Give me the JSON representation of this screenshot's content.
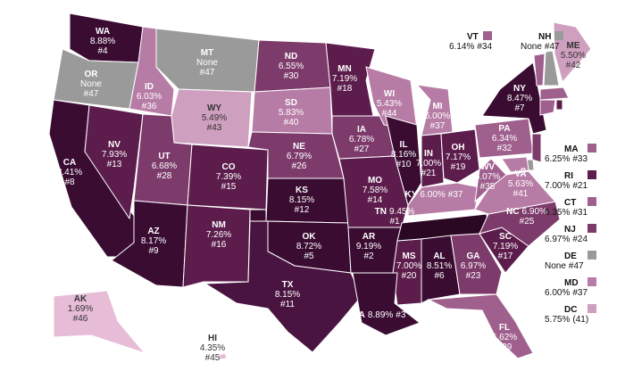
{
  "states": [
    {
      "abbr": "WA",
      "rate": "8.88%",
      "rank": "#4",
      "color": "#3a0c32"
    },
    {
      "abbr": "OR",
      "rate": "None",
      "rank": "#47",
      "color": "#9a9a9a"
    },
    {
      "abbr": "CA",
      "rate": "8.41%",
      "rank": "#8",
      "color": "#3a0c32"
    },
    {
      "abbr": "NV",
      "rate": "7.93%",
      "rank": "#13",
      "color": "#5c1d4c"
    },
    {
      "abbr": "ID",
      "rate": "6.03%",
      "rank": "#36",
      "color": "#b77ca5"
    },
    {
      "abbr": "MT",
      "rate": "None",
      "rank": "#47",
      "color": "#9a9a9a"
    },
    {
      "abbr": "WY",
      "rate": "5.49%",
      "rank": "#43",
      "color": "#cf9fbf"
    },
    {
      "abbr": "UT",
      "rate": "6.68%",
      "rank": "#28",
      "color": "#7d3b6b"
    },
    {
      "abbr": "AZ",
      "rate": "8.17%",
      "rank": "#9",
      "color": "#3a0c32"
    },
    {
      "abbr": "CO",
      "rate": "7.39%",
      "rank": "#15",
      "color": "#5c1d4c"
    },
    {
      "abbr": "NM",
      "rate": "7.26%",
      "rank": "#16",
      "color": "#5c1d4c"
    },
    {
      "abbr": "ND",
      "rate": "6.55%",
      "rank": "#30",
      "color": "#7d3b6b"
    },
    {
      "abbr": "SD",
      "rate": "5.83%",
      "rank": "#40",
      "color": "#b77ca5"
    },
    {
      "abbr": "NE",
      "rate": "6.79%",
      "rank": "#26",
      "color": "#7d3b6b"
    },
    {
      "abbr": "KS",
      "rate": "8.15%",
      "rank": "#12",
      "color": "#3a0c32"
    },
    {
      "abbr": "OK",
      "rate": "8.72%",
      "rank": "#5",
      "color": "#3a0c32"
    },
    {
      "abbr": "TX",
      "rate": "8.15%",
      "rank": "#11",
      "color": "#4a1440"
    },
    {
      "abbr": "MN",
      "rate": "7.19%",
      "rank": "#18",
      "color": "#5c1d4c"
    },
    {
      "abbr": "IA",
      "rate": "6.78%",
      "rank": "#27",
      "color": "#7d3b6b"
    },
    {
      "abbr": "MO",
      "rate": "7.58%",
      "rank": "#14",
      "color": "#5c1d4c"
    },
    {
      "abbr": "AR",
      "rate": "9.19%",
      "rank": "#2",
      "color": "#3a0c32"
    },
    {
      "abbr": "MS",
      "rate": "7.00%",
      "rank": "#20",
      "color": "#5c1d4c"
    },
    {
      "abbr": "LA",
      "rate": "8.89%",
      "rank": "#3",
      "color": "#3a0c32"
    },
    {
      "abbr": "WI",
      "rate": "5.43%",
      "rank": "#44",
      "color": "#b77ca5"
    },
    {
      "abbr": "IL",
      "rate": "8.16%",
      "rank": "#10",
      "color": "#3a0c32"
    },
    {
      "abbr": "MI",
      "rate": "6.00%",
      "rank": "#37",
      "color": "#b77ca5"
    },
    {
      "abbr": "IN",
      "rate": "7.00%",
      "rank": "#21",
      "color": "#5c1d4c"
    },
    {
      "abbr": "OH",
      "rate": "7.17%",
      "rank": "#19",
      "color": "#5c1d4c"
    },
    {
      "abbr": "KY",
      "rate": "6.00%",
      "rank": "#37",
      "color": "#b77ca5"
    },
    {
      "abbr": "TN",
      "rate": "9.45%",
      "rank": "#1",
      "color": "#2a0824"
    },
    {
      "abbr": "AL",
      "rate": "8.51%",
      "rank": "#6",
      "color": "#3a0c32"
    },
    {
      "abbr": "GA",
      "rate": "6.97%",
      "rank": "#23",
      "color": "#7d3b6b"
    },
    {
      "abbr": "FL",
      "rate": "6.62%",
      "rank": "#29",
      "color": "#a0608e"
    },
    {
      "abbr": "SC",
      "rate": "7.19%",
      "rank": "#17",
      "color": "#5c1d4c"
    },
    {
      "abbr": "NC",
      "rate": "6.90%",
      "rank": "#25",
      "color": "#7d3b6b"
    },
    {
      "abbr": "VA",
      "rate": "5.63%",
      "rank": "#41",
      "color": "#b77ca5"
    },
    {
      "abbr": "WV",
      "rate": "6.07%",
      "rank": "#35",
      "color": "#a0608e"
    },
    {
      "abbr": "PA",
      "rate": "6.34%",
      "rank": "#32",
      "color": "#a0608e"
    },
    {
      "abbr": "NY",
      "rate": "8.47%",
      "rank": "#7",
      "color": "#3a0c32"
    },
    {
      "abbr": "ME",
      "rate": "5.50%",
      "rank": "#42",
      "color": "#cf9fbf"
    },
    {
      "abbr": "VT",
      "rate": "6.14%",
      "rank": "#34",
      "color": "#a0608e"
    },
    {
      "abbr": "NH",
      "rate": "None",
      "rank": "#47",
      "color": "#9a9a9a"
    },
    {
      "abbr": "MA",
      "rate": "6.25%",
      "rank": "#33",
      "color": "#a0608e"
    },
    {
      "abbr": "RI",
      "rate": "7.00%",
      "rank": "#21",
      "color": "#5c1d4c"
    },
    {
      "abbr": "CT",
      "rate": "6.35%",
      "rank": "#31",
      "color": "#a0608e"
    },
    {
      "abbr": "NJ",
      "rate": "6.97%",
      "rank": "#24",
      "color": "#7d3b6b"
    },
    {
      "abbr": "DE",
      "rate": "None",
      "rank": "#47",
      "color": "#9a9a9a"
    },
    {
      "abbr": "MD",
      "rate": "6.00%",
      "rank": "#37",
      "color": "#b77ca5"
    },
    {
      "abbr": "DC",
      "rate": "5.75%",
      "rank": "(41)",
      "color": "#cf9fbf"
    },
    {
      "abbr": "AK",
      "rate": "1.69%",
      "rank": "#46",
      "color": "#e6bcd6"
    },
    {
      "abbr": "HI",
      "rate": "4.35%",
      "rank": "#45",
      "color": "#e6bcd6"
    }
  ]
}
